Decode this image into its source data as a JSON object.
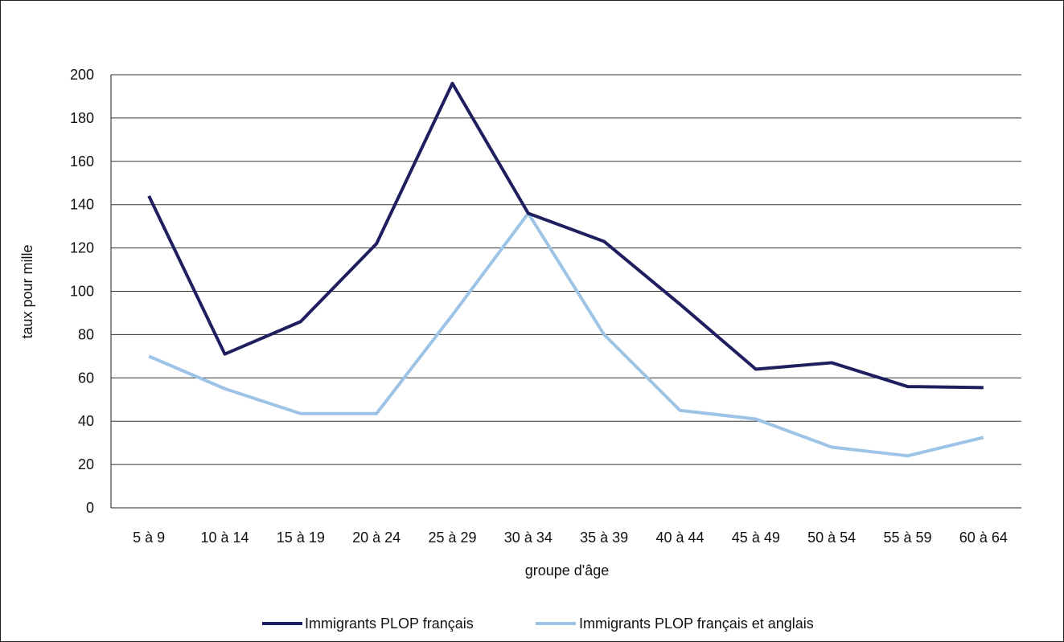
{
  "chart_data": {
    "type": "line",
    "categories": [
      "5 à 9",
      "10 à 14",
      "15 à 19",
      "20 à 24",
      "25 à 29",
      "30 à 34",
      "35 à 39",
      "40 à 44",
      "45 à 49",
      "50 à 54",
      "55 à 59",
      "60 à 64"
    ],
    "series": [
      {
        "name": "Immigrants PLOP français",
        "color": "#1f1f60",
        "values": [
          144,
          71,
          86,
          122,
          196,
          136,
          123,
          94,
          64,
          67,
          56,
          55.5
        ]
      },
      {
        "name": "Immigrants PLOP français et anglais",
        "color": "#9dc3e6",
        "values": [
          70,
          55,
          43.5,
          43.5,
          89,
          136,
          80,
          45,
          41,
          28,
          24,
          32.5
        ]
      }
    ],
    "title": "",
    "xlabel": "groupe d'âge",
    "ylabel": "taux pour mille",
    "ylim": [
      0,
      200
    ],
    "yticks": [
      0,
      20,
      40,
      60,
      80,
      100,
      120,
      140,
      160,
      180,
      200
    ],
    "grid": true,
    "legend": "bottom"
  }
}
